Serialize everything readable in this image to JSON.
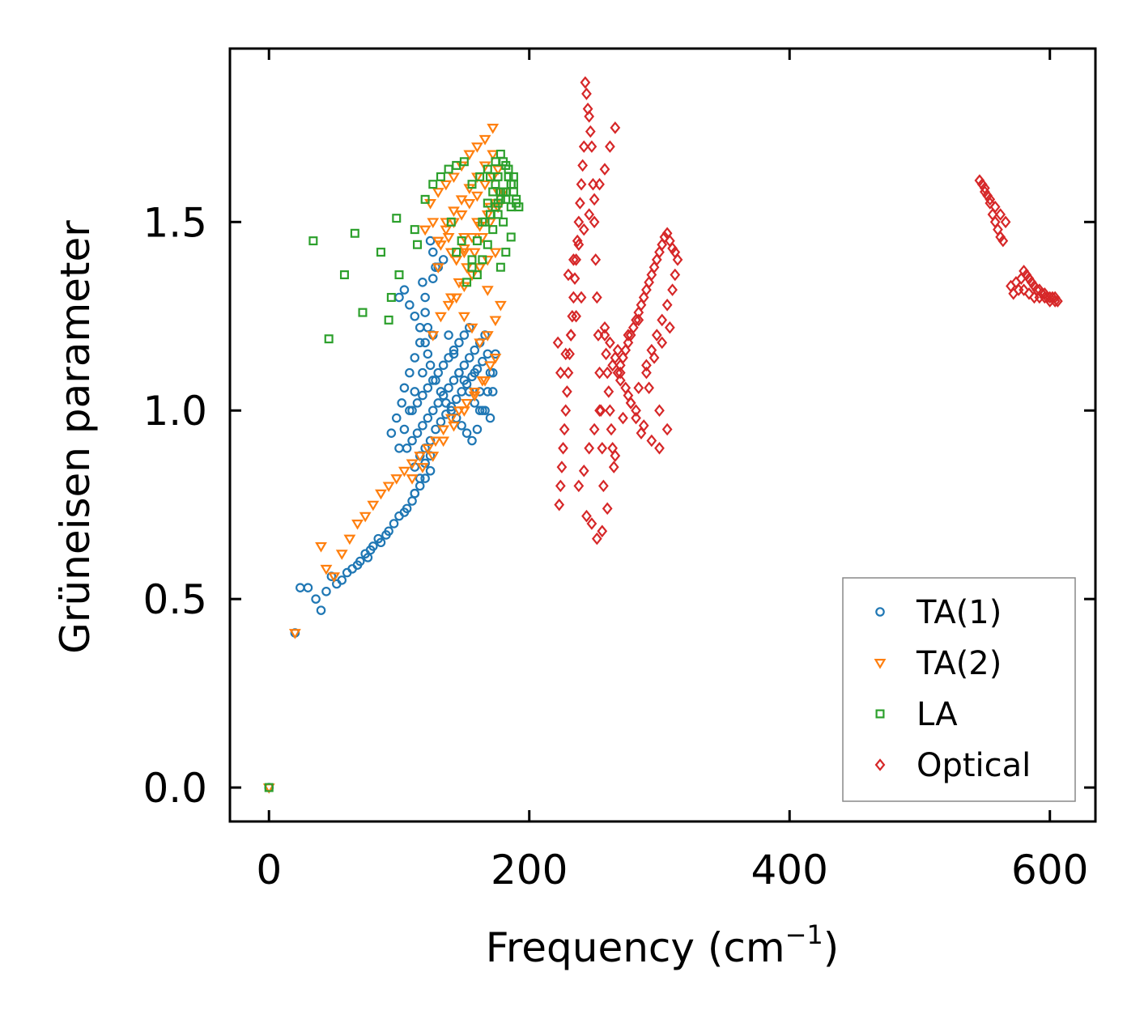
{
  "chart_data": {
    "type": "scatter",
    "title": "",
    "xlabel": "Frequency (cm",
    "xlabel_sup": "−1",
    "xlabel_end": ")",
    "ylabel": "Grüneisen parameter",
    "xlim": [
      -30,
      635
    ],
    "ylim": [
      -0.09,
      1.96
    ],
    "xticks": [
      0,
      200,
      400,
      600
    ],
    "xtick_labels": [
      "0",
      "200",
      "400",
      "600"
    ],
    "yticks": [
      0.0,
      0.5,
      1.0,
      1.5
    ],
    "ytick_labels": [
      "0.0",
      "0.5",
      "1.0",
      "1.5"
    ],
    "grid": false,
    "legend_position": "lower-right",
    "series": [
      {
        "name": "TA(1)",
        "marker": "circle",
        "color": "#1f77b4",
        "x": [
          0,
          20,
          24,
          30,
          36,
          40,
          44,
          48,
          52,
          56,
          60,
          64,
          68,
          70,
          74,
          76,
          78,
          80,
          84,
          86,
          90,
          92,
          96,
          100,
          104,
          106,
          110,
          112,
          116,
          120,
          124,
          100,
          104,
          108,
          112,
          118,
          122,
          126,
          100,
          104,
          108,
          112,
          116,
          120,
          124,
          128,
          132,
          136,
          140,
          144,
          148,
          152,
          156,
          160,
          164,
          168,
          172,
          174,
          120,
          126,
          130,
          134,
          138,
          142,
          146,
          150,
          154,
          158,
          162,
          110,
          114,
          118,
          122,
          126,
          130,
          134,
          138,
          142,
          146,
          150,
          154,
          158,
          162,
          166,
          170,
          172,
          106,
          110,
          114,
          118,
          122,
          126,
          130,
          134,
          138,
          142,
          146,
          150,
          154,
          158,
          162,
          166,
          170,
          112,
          116,
          120,
          124,
          128,
          132,
          136,
          140,
          144,
          148,
          152,
          156,
          160,
          164,
          168,
          124,
          126,
          128,
          118,
          120,
          122,
          116,
          112,
          108,
          104,
          102,
          98,
          94,
          112,
          116,
          120,
          124
        ],
        "y": [
          0.0,
          0.41,
          0.53,
          0.53,
          0.5,
          0.47,
          0.52,
          0.56,
          0.54,
          0.55,
          0.57,
          0.58,
          0.59,
          0.6,
          0.62,
          0.61,
          0.63,
          0.64,
          0.66,
          0.65,
          0.67,
          0.68,
          0.7,
          0.72,
          0.73,
          0.74,
          0.76,
          0.78,
          0.8,
          0.82,
          0.84,
          0.9,
          0.95,
          1.0,
          1.05,
          1.1,
          1.15,
          1.2,
          1.3,
          1.32,
          1.28,
          1.25,
          1.22,
          1.18,
          1.12,
          1.08,
          1.05,
          1.02,
          1.0,
          0.98,
          0.96,
          0.94,
          0.92,
          0.95,
          1.0,
          1.05,
          1.1,
          1.15,
          1.3,
          1.35,
          1.38,
          1.4,
          1.2,
          1.15,
          1.1,
          1.08,
          1.05,
          1.02,
          1.0,
          1.0,
          1.02,
          1.04,
          1.06,
          1.08,
          1.1,
          1.12,
          1.14,
          1.16,
          1.18,
          1.2,
          1.22,
          1.1,
          1.05,
          1.0,
          0.98,
          1.05,
          0.9,
          0.92,
          0.94,
          0.96,
          0.98,
          1.0,
          1.02,
          1.04,
          1.06,
          1.08,
          1.1,
          1.12,
          1.14,
          1.16,
          1.18,
          1.2,
          1.1,
          0.85,
          0.88,
          0.9,
          0.92,
          0.95,
          0.97,
          0.99,
          1.01,
          1.03,
          1.05,
          1.07,
          1.09,
          1.11,
          1.13,
          1.15,
          1.45,
          1.42,
          1.38,
          1.34,
          1.26,
          1.22,
          1.18,
          1.14,
          1.1,
          1.06,
          1.02,
          0.98,
          0.94,
          0.78,
          0.82,
          0.86,
          0.88
        ]
      },
      {
        "name": "TA(2)",
        "marker": "triangle-down",
        "color": "#ff7f0e",
        "x": [
          0,
          20,
          40,
          44,
          50,
          56,
          62,
          68,
          74,
          80,
          86,
          92,
          98,
          104,
          110,
          116,
          122,
          128,
          134,
          140,
          146,
          152,
          158,
          164,
          170,
          110,
          118,
          126,
          134,
          142,
          150,
          158,
          166,
          174,
          126,
          132,
          138,
          144,
          150,
          156,
          162,
          168,
          174,
          130,
          136,
          142,
          148,
          154,
          160,
          166,
          172,
          176,
          124,
          130,
          136,
          142,
          148,
          154,
          160,
          166,
          172,
          120,
          126,
          132,
          138,
          144,
          150,
          156,
          162,
          168,
          150,
          156,
          162,
          168,
          174,
          178,
          130,
          140,
          150,
          160,
          170,
          176,
          140,
          146,
          152,
          158,
          164,
          170,
          176,
          180,
          136,
          142,
          148,
          154,
          160,
          166,
          172,
          144,
          150,
          156,
          162,
          168,
          174
        ],
        "y": [
          0.0,
          0.41,
          0.64,
          0.58,
          0.56,
          0.62,
          0.66,
          0.7,
          0.72,
          0.75,
          0.78,
          0.8,
          0.82,
          0.84,
          0.86,
          0.88,
          0.9,
          0.92,
          0.95,
          0.98,
          1.0,
          1.02,
          1.05,
          1.08,
          1.12,
          0.82,
          0.85,
          0.88,
          0.92,
          0.96,
          1.0,
          1.04,
          1.08,
          1.14,
          1.2,
          1.25,
          1.28,
          1.3,
          1.33,
          1.36,
          1.38,
          1.4,
          1.42,
          1.45,
          1.48,
          1.5,
          1.52,
          1.55,
          1.57,
          1.6,
          1.62,
          1.64,
          1.55,
          1.58,
          1.6,
          1.62,
          1.65,
          1.68,
          1.7,
          1.72,
          1.75,
          1.48,
          1.5,
          1.44,
          1.46,
          1.4,
          1.42,
          1.36,
          1.38,
          1.32,
          1.25,
          1.22,
          1.18,
          1.2,
          1.24,
          1.28,
          1.38,
          1.42,
          1.46,
          1.5,
          1.54,
          1.58,
          1.3,
          1.34,
          1.38,
          1.42,
          1.46,
          1.5,
          1.54,
          1.58,
          1.5,
          1.53,
          1.56,
          1.59,
          1.62,
          1.65,
          1.68,
          1.4,
          1.43,
          1.46,
          1.49,
          1.52,
          1.55
        ]
      },
      {
        "name": "LA",
        "marker": "square",
        "color": "#2ca02c",
        "x": [
          0,
          34,
          46,
          58,
          66,
          72,
          86,
          92,
          94,
          98,
          100,
          112,
          114,
          120,
          126,
          132,
          138,
          144,
          150,
          156,
          162,
          168,
          174,
          178,
          182,
          184,
          186,
          188,
          190,
          180,
          176,
          172,
          168,
          164,
          160,
          156,
          152,
          148,
          144,
          140,
          178,
          182,
          186,
          176,
          180,
          184,
          188,
          170,
          174,
          178,
          182,
          186,
          190,
          192,
          166,
          170,
          174,
          178,
          182,
          186,
          188,
          184,
          180,
          176,
          172,
          168,
          164,
          160,
          156
        ],
        "y": [
          0.0,
          1.45,
          1.19,
          1.36,
          1.47,
          1.26,
          1.42,
          1.24,
          1.3,
          1.51,
          1.36,
          1.48,
          1.44,
          1.56,
          1.6,
          1.62,
          1.64,
          1.65,
          1.66,
          1.6,
          1.62,
          1.64,
          1.66,
          1.68,
          1.65,
          1.62,
          1.6,
          1.58,
          1.55,
          1.5,
          1.52,
          1.48,
          1.44,
          1.4,
          1.36,
          1.38,
          1.34,
          1.45,
          1.42,
          1.5,
          1.38,
          1.42,
          1.46,
          1.55,
          1.58,
          1.62,
          1.6,
          1.62,
          1.6,
          1.58,
          1.56,
          1.54,
          1.56,
          1.54,
          1.5,
          1.52,
          1.54,
          1.56,
          1.58,
          1.6,
          1.62,
          1.64,
          1.66,
          1.62,
          1.58,
          1.55,
          1.5,
          1.45,
          1.4
        ]
      },
      {
        "name": "Optical",
        "marker": "diamond",
        "color": "#d62728",
        "x": [
          243,
          244,
          245,
          246,
          247,
          242,
          241,
          240,
          239,
          238,
          237,
          236,
          235,
          234,
          233,
          232,
          231,
          230,
          229,
          228,
          227,
          226,
          225,
          224,
          223,
          222,
          248,
          249,
          250,
          251,
          252,
          253,
          254,
          255,
          256,
          257,
          258,
          259,
          260,
          261,
          262,
          263,
          264,
          265,
          266,
          240,
          236,
          232,
          228,
          224,
          244,
          248,
          252,
          256,
          260,
          238,
          242,
          246,
          250,
          254,
          230,
          234,
          238,
          242,
          246,
          250,
          254,
          258,
          262,
          266,
          268,
          270,
          272,
          274,
          276,
          278,
          280,
          282,
          284,
          286,
          288,
          290,
          292,
          294,
          296,
          298,
          300,
          302,
          304,
          306,
          308,
          310,
          312,
          314,
          272,
          278,
          284,
          290,
          296,
          302,
          308,
          268,
          276,
          284,
          292,
          300,
          306,
          264,
          270,
          276,
          282,
          288,
          294,
          300,
          258,
          262,
          266,
          270,
          274,
          278,
          282,
          286,
          290,
          294,
          298,
          302,
          306,
          310,
          312,
          546,
          548,
          550,
          552,
          554,
          556,
          558,
          560,
          562,
          564,
          550,
          554,
          558,
          562,
          566,
          580,
          582,
          584,
          586,
          588,
          590,
          592,
          594,
          596,
          598,
          600,
          602,
          604,
          606,
          570,
          574,
          578,
          572,
          576,
          580,
          584,
          588,
          592,
          596,
          600,
          604
        ],
        "y": [
          1.87,
          1.84,
          1.8,
          1.78,
          1.74,
          1.7,
          1.65,
          1.6,
          1.55,
          1.5,
          1.45,
          1.4,
          1.35,
          1.3,
          1.25,
          1.2,
          1.15,
          1.1,
          1.05,
          1.0,
          0.95,
          0.9,
          0.85,
          0.8,
          0.75,
          1.18,
          1.7,
          1.6,
          1.5,
          1.4,
          1.3,
          1.2,
          1.1,
          1.0,
          0.9,
          0.8,
          1.2,
          1.15,
          1.1,
          1.05,
          1.0,
          0.95,
          0.9,
          0.85,
          0.88,
          1.3,
          1.25,
          1.2,
          1.15,
          1.1,
          0.72,
          0.7,
          0.66,
          0.68,
          0.74,
          0.8,
          0.84,
          0.9,
          0.95,
          1.0,
          1.36,
          1.4,
          1.44,
          1.48,
          1.52,
          1.56,
          1.6,
          1.64,
          1.7,
          1.75,
          1.1,
          1.12,
          1.14,
          1.16,
          1.18,
          1.2,
          1.22,
          1.24,
          1.26,
          1.28,
          1.3,
          1.32,
          1.34,
          1.36,
          1.38,
          1.4,
          1.42,
          1.44,
          1.46,
          1.47,
          1.45,
          1.43,
          1.42,
          1.4,
          0.98,
          1.02,
          1.06,
          1.1,
          1.14,
          1.18,
          1.22,
          1.16,
          1.2,
          1.24,
          1.06,
          1.0,
          0.95,
          1.12,
          1.08,
          1.04,
          1.0,
          0.96,
          0.92,
          0.9,
          1.22,
          1.18,
          1.14,
          1.1,
          1.06,
          1.02,
          0.98,
          0.94,
          1.12,
          1.16,
          1.2,
          1.24,
          1.28,
          1.32,
          1.36,
          1.61,
          1.6,
          1.59,
          1.57,
          1.55,
          1.52,
          1.5,
          1.48,
          1.46,
          1.45,
          1.58,
          1.56,
          1.54,
          1.52,
          1.5,
          1.37,
          1.36,
          1.35,
          1.34,
          1.33,
          1.32,
          1.32,
          1.31,
          1.31,
          1.3,
          1.3,
          1.3,
          1.3,
          1.29,
          1.33,
          1.34,
          1.35,
          1.31,
          1.32,
          1.32,
          1.31,
          1.3,
          1.3,
          1.3,
          1.29,
          1.29
        ]
      }
    ]
  }
}
